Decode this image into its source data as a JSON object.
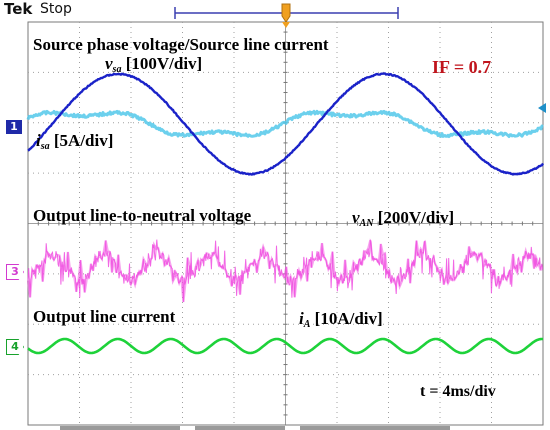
{
  "header": {
    "brand": "Tek",
    "status": "Stop"
  },
  "labels": {
    "plot1_title": "Source phase voltage/Source line current",
    "vsa_symbol": "v",
    "vsa_sub": "sa",
    "vsa_scale": "[100V/div]",
    "isa_symbol": "i",
    "isa_sub": "sa",
    "isa_scale": "[5A/div]",
    "if_value": "IF = 0.7",
    "plot2_title": "Output line-to-neutral voltage",
    "van_symbol": "v",
    "van_sub": "AN",
    "van_scale": "[200V/div]",
    "plot3_title": "Output line current",
    "ia_symbol": "i",
    "ia_sub": "A",
    "ia_scale": "[10A/div]",
    "timebase": "t = 4ms/div"
  },
  "channels": {
    "ch1": "1",
    "ch3": "3",
    "ch4": "4"
  },
  "colors": {
    "vsa": "#1a22c8",
    "isa": "#52c8ea",
    "van": "#f04ce0",
    "ia": "#1ed23a",
    "if_text": "#c0141c",
    "grid": "#a0a0a0"
  }
}
